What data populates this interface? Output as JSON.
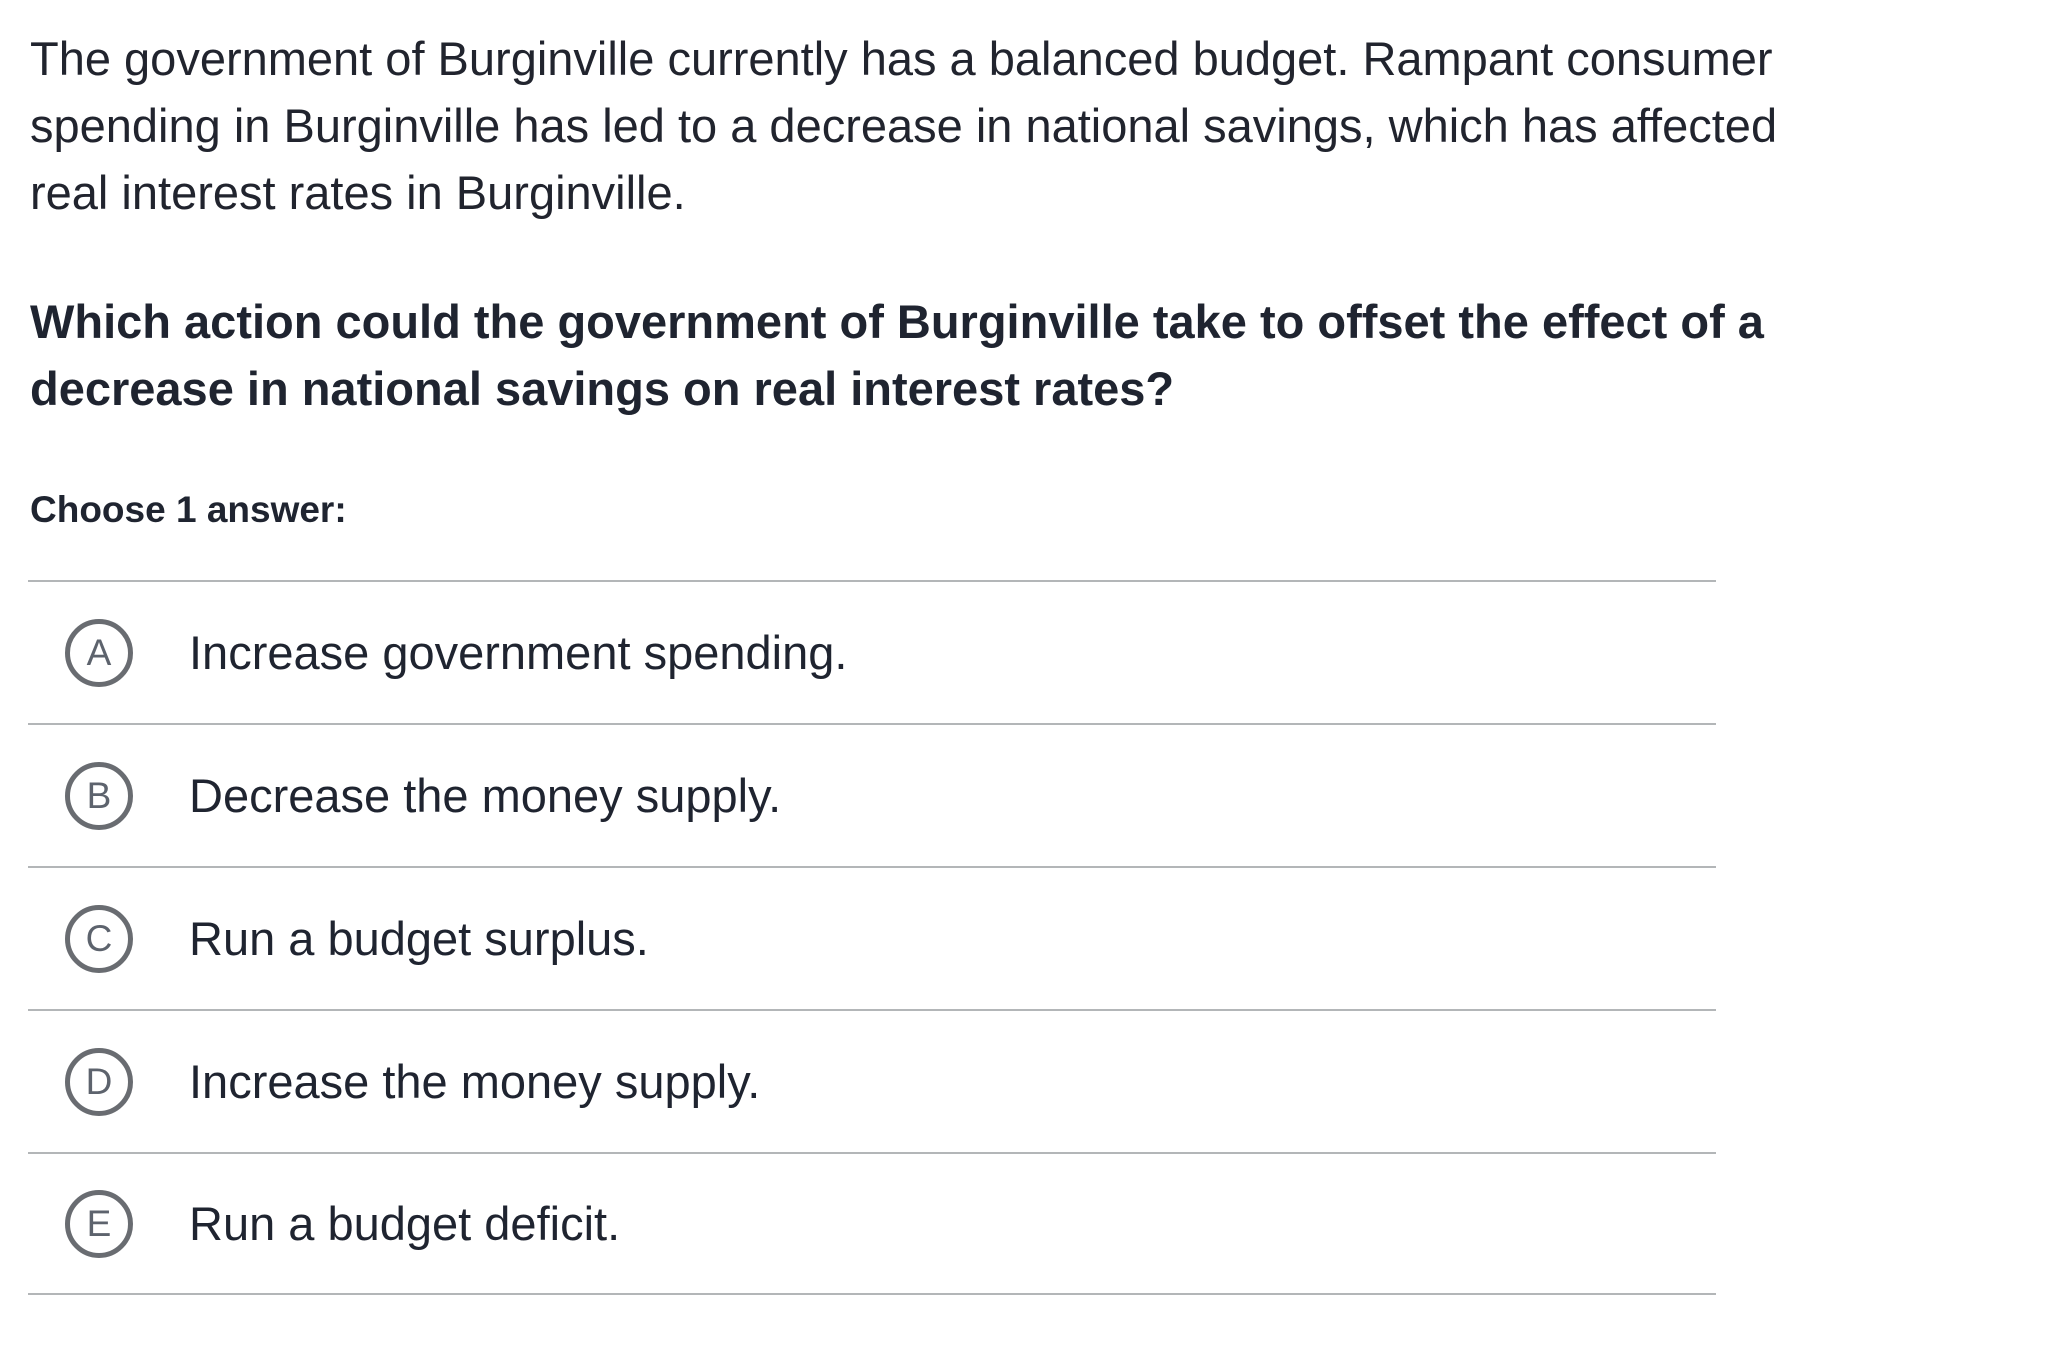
{
  "question": {
    "context": "The government of Burginville currently has a balanced budget. Rampant consumer spending in Burginville has led to a decrease in national savings, which has affected real interest rates in Burginville.",
    "prompt": "Which action could the government of Burginville take to offset the effect of a decrease in national savings on real interest rates?",
    "instruction": "Choose 1 answer:"
  },
  "answers": [
    {
      "letter": "A",
      "text": "Increase government spending."
    },
    {
      "letter": "B",
      "text": "Decrease the money supply."
    },
    {
      "letter": "C",
      "text": "Run a budget surplus."
    },
    {
      "letter": "D",
      "text": "Increase the money supply."
    },
    {
      "letter": "E",
      "text": "Run a budget deficit."
    }
  ],
  "colors": {
    "text": "#21242e",
    "prompt": "#1f2430",
    "divider": "#b3b6b8",
    "radio_border": "#696c71",
    "radio_letter": "#5d636d",
    "background": "#ffffff"
  }
}
